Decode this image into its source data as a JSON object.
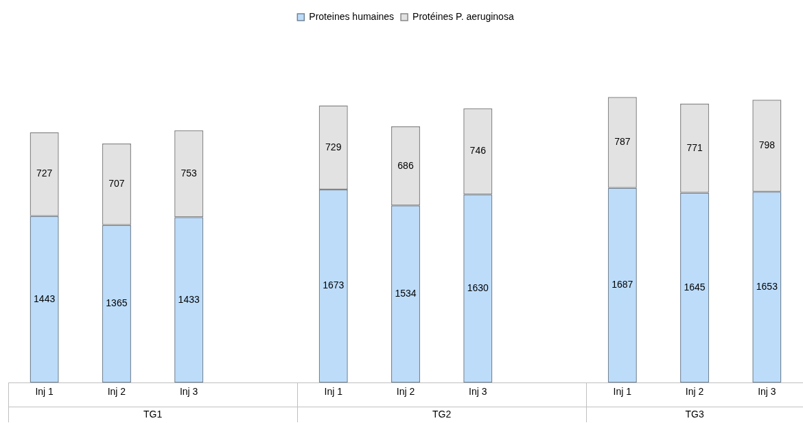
{
  "chart_data": {
    "type": "bar",
    "stacked": true,
    "data_labels": true,
    "legend": "top",
    "grid": false,
    "tick_labels": "x",
    "categories": [
      "Inj 1",
      "Inj 2",
      "Inj 3",
      null,
      "Inj 1",
      "Inj 2",
      "Inj 3",
      null,
      "Inj 1",
      "Inj 2",
      "Inj 3"
    ],
    "series": [
      {
        "name": "Proteines humaines",
        "color": "#bcdcfa",
        "values": [
          1443,
          1365,
          1433,
          null,
          1673,
          1534,
          1630,
          null,
          1687,
          1645,
          1653
        ]
      },
      {
        "name": "Protéines P. aeruginosa",
        "color": "#e2e2e2",
        "values": [
          727,
          707,
          753,
          null,
          729,
          686,
          746,
          null,
          787,
          771,
          798
        ]
      }
    ],
    "annotations": [
      "TG1",
      "TG2",
      "TG3"
    ]
  }
}
